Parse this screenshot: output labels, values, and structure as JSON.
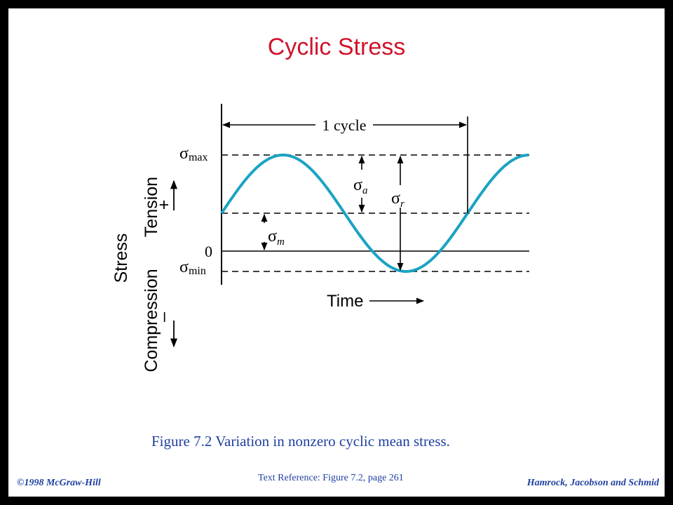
{
  "title": "Cyclic Stress",
  "caption": "Figure 7.2  Variation in nonzero cyclic mean stress.",
  "text_reference": "Text Reference:  Figure 7.2,  page 261",
  "footer_left": "©1998 McGraw-Hill",
  "footer_right": "Hamrock, Jacobson and Schmid",
  "diagram": {
    "cycle_label": "1 cycle",
    "sigma_max_label": "σ",
    "sigma_max_sub": "max",
    "zero_label": "0",
    "sigma_min_label": "σ",
    "sigma_min_sub": "min",
    "sigma_a_label": "σ",
    "sigma_a_sub": "a",
    "sigma_r_label": "σ",
    "sigma_r_sub": "r",
    "sigma_m_label": "σ",
    "sigma_m_sub": "m",
    "time_label": "Time",
    "tension_label": "Tension",
    "plus_label": "+",
    "stress_label": "Stress",
    "compression_label": "Compression",
    "minus_label": "–"
  },
  "colors": {
    "title": "#d0142c",
    "footer": "#1f3fa0",
    "wave": "#1aa3c3"
  }
}
